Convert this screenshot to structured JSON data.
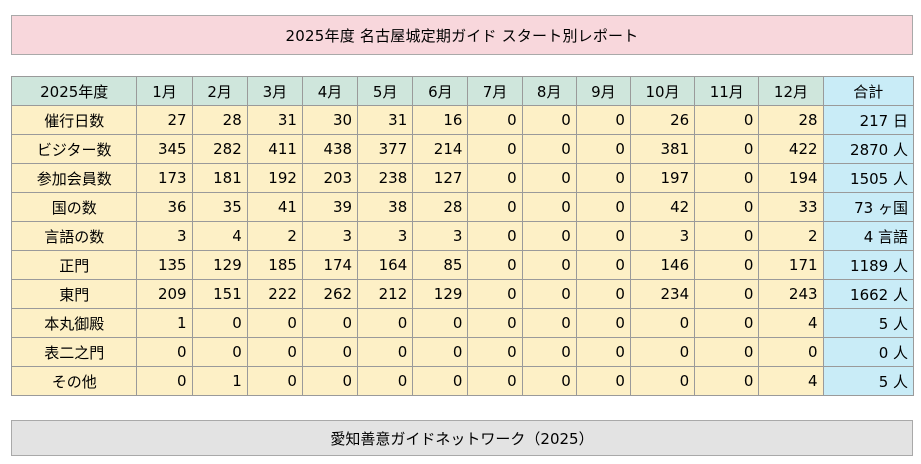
{
  "title": "2025年度 名古屋城定期ガイド スタート別レポート",
  "footer": "愛知善意ガイドネットワーク（2025）",
  "table": {
    "corner": "2025年度",
    "months": [
      "1月",
      "2月",
      "3月",
      "4月",
      "5月",
      "6月",
      "7月",
      "8月",
      "9月",
      "10月",
      "11月",
      "12月"
    ],
    "total_header": "合計",
    "rows": [
      {
        "label": "催行日数",
        "values": [
          "27",
          "28",
          "31",
          "30",
          "31",
          "16",
          "0",
          "0",
          "0",
          "26",
          "0",
          "28"
        ],
        "total": "217 日"
      },
      {
        "label": "ビジター数",
        "values": [
          "345",
          "282",
          "411",
          "438",
          "377",
          "214",
          "0",
          "0",
          "0",
          "381",
          "0",
          "422"
        ],
        "total": "2870 人"
      },
      {
        "label": "参加会員数",
        "values": [
          "173",
          "181",
          "192",
          "203",
          "238",
          "127",
          "0",
          "0",
          "0",
          "197",
          "0",
          "194"
        ],
        "total": "1505 人"
      },
      {
        "label": "国の数",
        "values": [
          "36",
          "35",
          "41",
          "39",
          "38",
          "28",
          "0",
          "0",
          "0",
          "42",
          "0",
          "33"
        ],
        "total": "73 ヶ国"
      },
      {
        "label": "言語の数",
        "values": [
          "3",
          "4",
          "2",
          "3",
          "3",
          "3",
          "0",
          "0",
          "0",
          "3",
          "0",
          "2"
        ],
        "total": "4 言語"
      },
      {
        "label": "正門",
        "values": [
          "135",
          "129",
          "185",
          "174",
          "164",
          "85",
          "0",
          "0",
          "0",
          "146",
          "0",
          "171"
        ],
        "total": "1189 人"
      },
      {
        "label": "東門",
        "values": [
          "209",
          "151",
          "222",
          "262",
          "212",
          "129",
          "0",
          "0",
          "0",
          "234",
          "0",
          "243"
        ],
        "total": "1662 人"
      },
      {
        "label": "本丸御殿",
        "values": [
          "1",
          "0",
          "0",
          "0",
          "0",
          "0",
          "0",
          "0",
          "0",
          "0",
          "0",
          "4"
        ],
        "total": "5 人"
      },
      {
        "label": "表二之門",
        "values": [
          "0",
          "0",
          "0",
          "0",
          "0",
          "0",
          "0",
          "0",
          "0",
          "0",
          "0",
          "0"
        ],
        "total": "0 人"
      },
      {
        "label": "その他",
        "values": [
          "0",
          "1",
          "0",
          "0",
          "0",
          "0",
          "0",
          "0",
          "0",
          "0",
          "0",
          "4"
        ],
        "total": "5 人"
      }
    ]
  }
}
